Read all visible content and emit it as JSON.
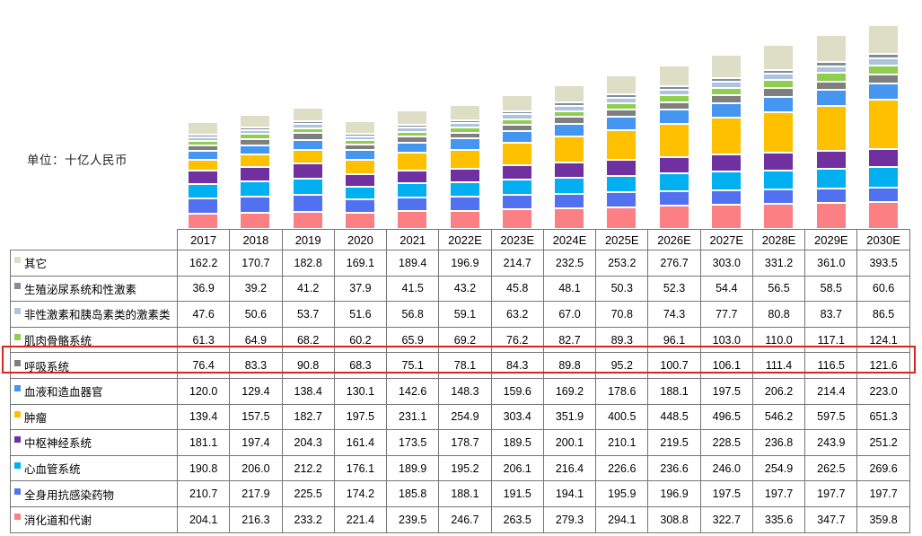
{
  "unit_label": "单位：十亿人民币",
  "chart_data": {
    "type": "bar",
    "stacked": true,
    "title": "",
    "xlabel": "",
    "ylabel": "单位：十亿人民币",
    "grid": false,
    "legend_position": "table-rows-left",
    "categories": [
      "2017",
      "2018",
      "2019",
      "2020",
      "2021",
      "2022E",
      "2023E",
      "2024E",
      "2025E",
      "2026E",
      "2027E",
      "2028E",
      "2029E",
      "2030E"
    ],
    "series": [
      {
        "name": "其它",
        "color": "#DEDDC6",
        "values": [
          162.2,
          170.7,
          182.8,
          169.1,
          189.4,
          196.9,
          214.7,
          232.5,
          253.2,
          276.7,
          303.0,
          331.2,
          361.0,
          393.5
        ]
      },
      {
        "name": "生殖泌尿系统和性激素",
        "color": "#7F8D9D",
        "values": [
          36.9,
          39.2,
          41.2,
          37.9,
          41.5,
          43.2,
          45.8,
          48.1,
          50.3,
          52.3,
          54.4,
          56.5,
          58.5,
          60.6
        ]
      },
      {
        "name": "非性激素和胰岛素类的激素类",
        "color": "#AFC3DC",
        "values": [
          47.6,
          50.6,
          53.7,
          51.6,
          56.8,
          59.1,
          63.2,
          67.0,
          70.8,
          74.3,
          77.7,
          80.8,
          83.7,
          86.5
        ]
      },
      {
        "name": "肌肉骨骼系统",
        "color": "#90CE50",
        "values": [
          61.3,
          64.9,
          68.2,
          60.2,
          65.9,
          69.2,
          76.2,
          82.7,
          89.3,
          96.1,
          103.0,
          110.0,
          117.1,
          124.1
        ]
      },
      {
        "name": "呼吸系统",
        "color": "#7F7F7F",
        "values": [
          76.4,
          83.3,
          90.8,
          68.3,
          75.1,
          78.1,
          84.3,
          89.8,
          95.2,
          100.7,
          106.1,
          111.4,
          116.5,
          121.6
        ]
      },
      {
        "name": "血液和造血器官",
        "color": "#4496F0",
        "values": [
          120.0,
          129.4,
          138.4,
          130.1,
          142.6,
          148.3,
          159.6,
          169.2,
          178.6,
          188.1,
          197.5,
          206.2,
          214.4,
          223.0
        ]
      },
      {
        "name": "肿瘤",
        "color": "#FFC000",
        "values": [
          139.4,
          157.5,
          182.7,
          197.5,
          231.1,
          254.9,
          303.4,
          351.9,
          400.5,
          448.5,
          496.5,
          546.2,
          597.5,
          651.3
        ]
      },
      {
        "name": "中枢神经系统",
        "color": "#7030A0",
        "values": [
          181.1,
          197.4,
          204.3,
          161.4,
          173.5,
          178.7,
          189.5,
          200.1,
          210.1,
          219.5,
          228.5,
          236.8,
          243.9,
          251.2
        ]
      },
      {
        "name": "心血管系统",
        "color": "#00B0F0",
        "values": [
          190.8,
          206.0,
          212.2,
          176.1,
          189.9,
          195.2,
          206.1,
          216.4,
          226.6,
          236.6,
          246.0,
          254.9,
          262.5,
          269.6
        ]
      },
      {
        "name": "全身用抗感染药物",
        "color": "#5271F0",
        "values": [
          210.7,
          217.9,
          225.5,
          174.2,
          185.8,
          188.1,
          191.5,
          194.1,
          195.9,
          196.9,
          197.5,
          197.7,
          197.7,
          197.7
        ]
      },
      {
        "name": "消化道和代谢",
        "color": "#FC7F84",
        "values": [
          204.1,
          216.3,
          233.2,
          221.4,
          239.5,
          246.7,
          263.5,
          279.3,
          294.1,
          308.8,
          322.7,
          335.6,
          347.7,
          359.8
        ]
      }
    ],
    "stack_order_bottom_to_top": [
      "消化道和代谢",
      "全身用抗感染药物",
      "心血管系统",
      "中枢神经系统",
      "肿瘤",
      "血液和造血器官",
      "呼吸系统",
      "肌肉骨骼系统",
      "非性激素和胰岛素类的激素类",
      "生殖泌尿系统和性激素",
      "其它"
    ]
  },
  "table": {
    "header": [
      "",
      "2017",
      "2018",
      "2019",
      "2020",
      "2021",
      "2022E",
      "2023E",
      "2024E",
      "2025E",
      "2026E",
      "2027E",
      "2028E",
      "2029E",
      "2030E"
    ]
  },
  "highlight": {
    "row_label": "呼吸系统",
    "color": "#E02417"
  }
}
